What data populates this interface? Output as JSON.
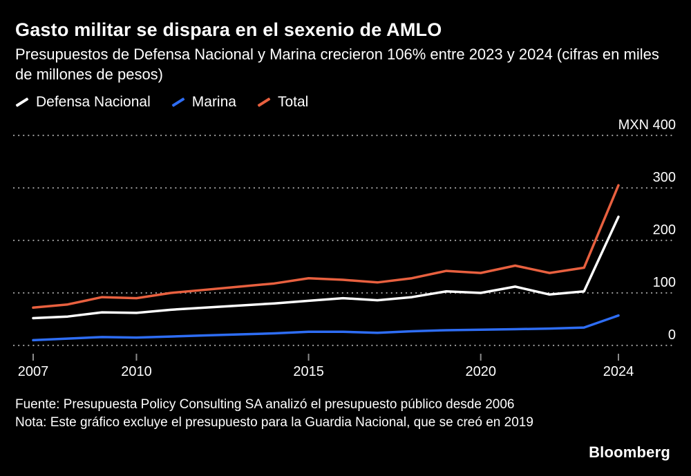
{
  "header": {
    "title": "Gasto militar se dispara en el sexenio de AMLO",
    "subtitle": "Presupuestos de Defensa Nacional y Marina crecieron 106% entre 2023 y 2024 (cifras en miles de millones de pesos)"
  },
  "legend": [
    {
      "label": "Defensa Nacional",
      "color": "#ffffff"
    },
    {
      "label": "Marina",
      "color": "#2e6df4"
    },
    {
      "label": "Total",
      "color": "#e8603f"
    }
  ],
  "footer": {
    "source": "Fuente: Presupuesta Policy Consulting SA analizó el presupuesto público desde 2006",
    "note": "Nota: Este gráfico excluye el presupuesto para la Guardia Nacional, que se creó en 2019",
    "brand": "Bloomberg"
  },
  "colors": {
    "background": "#000000",
    "text": "#ffffff",
    "gridline": "#9b9b9b",
    "defensa": "#ffffff",
    "marina": "#2e6df4",
    "total": "#e8603f"
  },
  "chart_data": {
    "type": "line",
    "title": "Gasto militar se dispara en el sexenio de AMLO",
    "subtitle": "Presupuestos de Defensa Nacional y Marina crecieron 106% entre 2023 y 2024 (cifras en miles de millones de pesos)",
    "x": [
      2007,
      2008,
      2009,
      2010,
      2011,
      2012,
      2013,
      2014,
      2015,
      2016,
      2017,
      2018,
      2019,
      2020,
      2021,
      2022,
      2023,
      2024
    ],
    "series": [
      {
        "name": "Defensa Nacional",
        "color": "#ffffff",
        "values": [
          52,
          55,
          63,
          62,
          68,
          72,
          76,
          80,
          85,
          90,
          86,
          92,
          103,
          100,
          112,
          97,
          103,
          245
        ]
      },
      {
        "name": "Marina",
        "color": "#2e6df4",
        "values": [
          10,
          13,
          16,
          15,
          17,
          19,
          21,
          23,
          26,
          26,
          24,
          27,
          29,
          30,
          31,
          32,
          34,
          57
        ]
      },
      {
        "name": "Total",
        "color": "#e8603f",
        "values": [
          72,
          78,
          92,
          90,
          100,
          106,
          112,
          118,
          128,
          125,
          120,
          128,
          142,
          138,
          152,
          138,
          148,
          305
        ]
      }
    ],
    "ylim": [
      0,
      400
    ],
    "yticks": [
      0,
      100,
      200,
      300,
      400
    ],
    "y_unit": "MXN",
    "xticks": [
      2007,
      2010,
      2015,
      2020,
      2024
    ],
    "grid": "horizontal-dotted",
    "legend_position": "top-left"
  }
}
